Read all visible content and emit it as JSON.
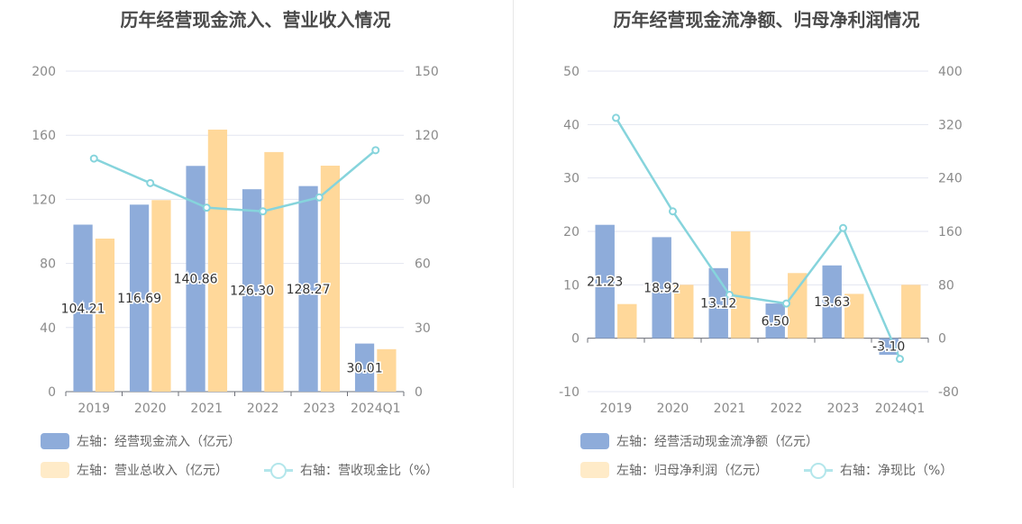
{
  "colors": {
    "bar1": "#8EACDA",
    "bar2": "#FFD89A",
    "bar2_legend": "#FFEBC8",
    "line": "#86D4DC",
    "line_legend": "#B3E6EB",
    "grid": "#E3E6F0"
  },
  "chart_data": [
    {
      "type": "bar",
      "title": "历年经营现金流入、营业收入情况",
      "categories": [
        "2019",
        "2020",
        "2021",
        "2022",
        "2023",
        "2024Q1"
      ],
      "left_axis": {
        "min": 0,
        "max": 200,
        "ticks": [
          "0",
          "40",
          "80",
          "120",
          "160",
          "200"
        ]
      },
      "right_axis": {
        "min": 0,
        "max": 150,
        "ticks": [
          "0",
          "30",
          "60",
          "90",
          "120",
          "150"
        ]
      },
      "series": [
        {
          "name": "左轴：经营现金流入（亿元）",
          "axis": "left",
          "kind": "bar",
          "values": [
            104.21,
            116.69,
            140.86,
            126.3,
            128.27,
            30.01
          ],
          "labels": [
            "104.21",
            "116.69",
            "140.86",
            "126.30",
            "128.27",
            "30.01"
          ]
        },
        {
          "name": "左轴：营业总收入（亿元）",
          "axis": "left",
          "kind": "bar",
          "values": [
            95.5,
            119.5,
            163.5,
            149.5,
            141.0,
            26.5
          ]
        },
        {
          "name": "右轴：营收现金比（%）",
          "axis": "right",
          "kind": "line",
          "values": [
            109.1,
            97.6,
            86.1,
            84.4,
            90.9,
            113.0
          ]
        }
      ]
    },
    {
      "type": "bar",
      "title": "历年经营现金流净额、归母净利润情况",
      "categories": [
        "2019",
        "2020",
        "2021",
        "2022",
        "2023",
        "2024Q1"
      ],
      "left_axis": {
        "min": -10,
        "max": 50,
        "ticks": [
          "-10",
          "0",
          "10",
          "20",
          "30",
          "40",
          "50"
        ]
      },
      "right_axis": {
        "min": -80,
        "max": 400,
        "ticks": [
          "-80",
          "0",
          "80",
          "160",
          "240",
          "320",
          "400"
        ]
      },
      "series": [
        {
          "name": "左轴：经营活动现金流净额（亿元）",
          "axis": "left",
          "kind": "bar",
          "values": [
            21.23,
            18.92,
            13.12,
            6.5,
            13.63,
            -3.1
          ],
          "labels": [
            "21.23",
            "18.92",
            "13.12",
            "6.50",
            "13.63",
            "-3.10"
          ]
        },
        {
          "name": "左轴：归母净利润（亿元）",
          "axis": "left",
          "kind": "bar",
          "values": [
            6.4,
            10.0,
            20.0,
            12.2,
            8.3,
            10.0
          ]
        },
        {
          "name": "右轴：净现比（%）",
          "axis": "right",
          "kind": "line",
          "values": [
            330,
            190,
            65,
            52,
            165,
            -31
          ]
        }
      ]
    }
  ]
}
